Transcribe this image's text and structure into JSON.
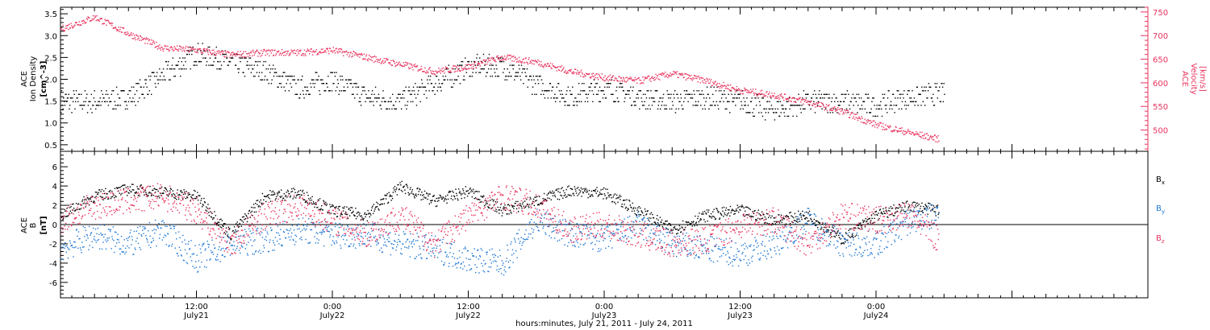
{
  "chart_data": [
    {
      "type": "scatter",
      "panel": "top",
      "ylabel_left": {
        "line1": "ACE",
        "line2": "Ion Density",
        "units": "[cm^-3]"
      },
      "ylabel_right": {
        "line1": "ACE",
        "line2": "Velocity",
        "units": "[km/s]"
      },
      "ylim_left": [
        0.35,
        3.65
      ],
      "ylim_right": [
        455,
        760
      ],
      "yticks_left": [
        "0.5",
        "1.0",
        "1.5",
        "2.0",
        "2.5",
        "3.0",
        "3.5"
      ],
      "yticks_right": [
        "500",
        "550",
        "600",
        "650",
        "700",
        "750"
      ],
      "colors": {
        "density": "#000000",
        "velocity": "#e8335d"
      },
      "series": [
        {
          "axis": "left",
          "color": "density",
          "x": [
            0,
            3,
            6,
            9,
            12,
            15,
            18,
            21,
            24,
            27,
            30,
            33,
            36,
            39,
            42,
            45,
            48,
            51,
            54,
            57,
            60,
            63,
            66,
            69,
            72,
            75,
            78
          ],
          "y": [
            1.5,
            1.5,
            1.6,
            2.1,
            2.6,
            2.4,
            2.2,
            1.8,
            2.0,
            1.6,
            1.5,
            1.9,
            2.3,
            2.3,
            1.9,
            1.6,
            1.8,
            1.6,
            1.5,
            1.6,
            1.5,
            1.3,
            1.5,
            1.5,
            1.4,
            1.6,
            1.7
          ]
        },
        {
          "axis": "right",
          "color": "velocity",
          "x": [
            0,
            3,
            6,
            9,
            12,
            15,
            18,
            21,
            24,
            27,
            30,
            33,
            36,
            39,
            42,
            45,
            48,
            51,
            54,
            57,
            60,
            63,
            66,
            69,
            72,
            75,
            77.5
          ],
          "y": [
            715,
            740,
            705,
            675,
            670,
            660,
            665,
            665,
            670,
            655,
            640,
            625,
            635,
            655,
            645,
            625,
            612,
            605,
            620,
            605,
            585,
            575,
            560,
            540,
            512,
            495,
            482
          ]
        }
      ]
    },
    {
      "type": "scatter",
      "panel": "bottom",
      "ylabel": {
        "line1": "ACE",
        "line2": "B",
        "units": "[nT]"
      },
      "ylim": [
        -7.6,
        7.6
      ],
      "yticks": [
        "-6",
        "-4",
        "-2",
        "0",
        "2",
        "4",
        "6"
      ],
      "zero_line": true,
      "colors": {
        "Bx": "#000000",
        "By": "#1f77d4",
        "Bz": "#e8335d"
      },
      "series": [
        {
          "name": "B",
          "sub": "x",
          "color": "Bx",
          "x": [
            0,
            3,
            6,
            9,
            12,
            15,
            18,
            21,
            24,
            27,
            30,
            33,
            36,
            39,
            42,
            45,
            48,
            51,
            54,
            57,
            60,
            63,
            66,
            69,
            72,
            75,
            77.5
          ],
          "y": [
            1.0,
            3.0,
            3.7,
            3.4,
            3.0,
            -1.0,
            3.0,
            3.3,
            1.5,
            1.0,
            4.0,
            2.5,
            3.5,
            1.5,
            2.5,
            3.6,
            3.3,
            1.5,
            -0.5,
            1.0,
            1.5,
            0.5,
            1.0,
            -1.5,
            1.0,
            2.0,
            1.5
          ]
        },
        {
          "name": "B",
          "sub": "y",
          "color": "By",
          "x": [
            0,
            3,
            6,
            9,
            12,
            15,
            18,
            21,
            24,
            27,
            30,
            33,
            36,
            39,
            42,
            45,
            48,
            51,
            54,
            57,
            60,
            63,
            66,
            69,
            72,
            75,
            77.5
          ],
          "y": [
            -2.5,
            -1.0,
            -2.0,
            -0.5,
            -3.5,
            -2.0,
            -1.5,
            -0.5,
            -1.0,
            -1.0,
            -2.0,
            -2.5,
            -3.5,
            -4.0,
            0.5,
            -1.0,
            -1.5,
            0.0,
            -2.0,
            -2.5,
            -3.0,
            -2.0,
            0.5,
            -2.0,
            -2.0,
            0.5,
            1.0
          ]
        },
        {
          "name": "B",
          "sub": "z",
          "color": "Bz",
          "x": [
            0,
            3,
            6,
            9,
            12,
            15,
            18,
            21,
            24,
            27,
            30,
            33,
            36,
            39,
            42,
            45,
            48,
            51,
            54,
            57,
            60,
            63,
            66,
            69,
            72,
            75,
            77.5
          ],
          "y": [
            0.5,
            2.0,
            2.5,
            3.0,
            1.5,
            -2.0,
            1.0,
            2.0,
            0.5,
            -1.0,
            1.0,
            -2.0,
            1.0,
            3.0,
            2.0,
            -0.5,
            0.0,
            -1.0,
            -2.0,
            -1.5,
            0.0,
            0.5,
            -2.0,
            1.0,
            0.5,
            1.0,
            -1.5
          ]
        }
      ]
    }
  ],
  "time_axis": {
    "xlim_hours": [
      0,
      96
    ],
    "major_ticks": [
      {
        "h": 12,
        "time": "12:00",
        "date": "July21"
      },
      {
        "h": 24,
        "time": "0:00",
        "date": "July22"
      },
      {
        "h": 36,
        "time": "12:00",
        "date": "July22"
      },
      {
        "h": 48,
        "time": "0:00",
        "date": "July23"
      },
      {
        "h": 60,
        "time": "12:00",
        "date": "July23"
      },
      {
        "h": 72,
        "time": "0:00",
        "date": "July24"
      }
    ],
    "xlabel": "hours:minutes, July 21, 2011 - July 24, 2011"
  }
}
